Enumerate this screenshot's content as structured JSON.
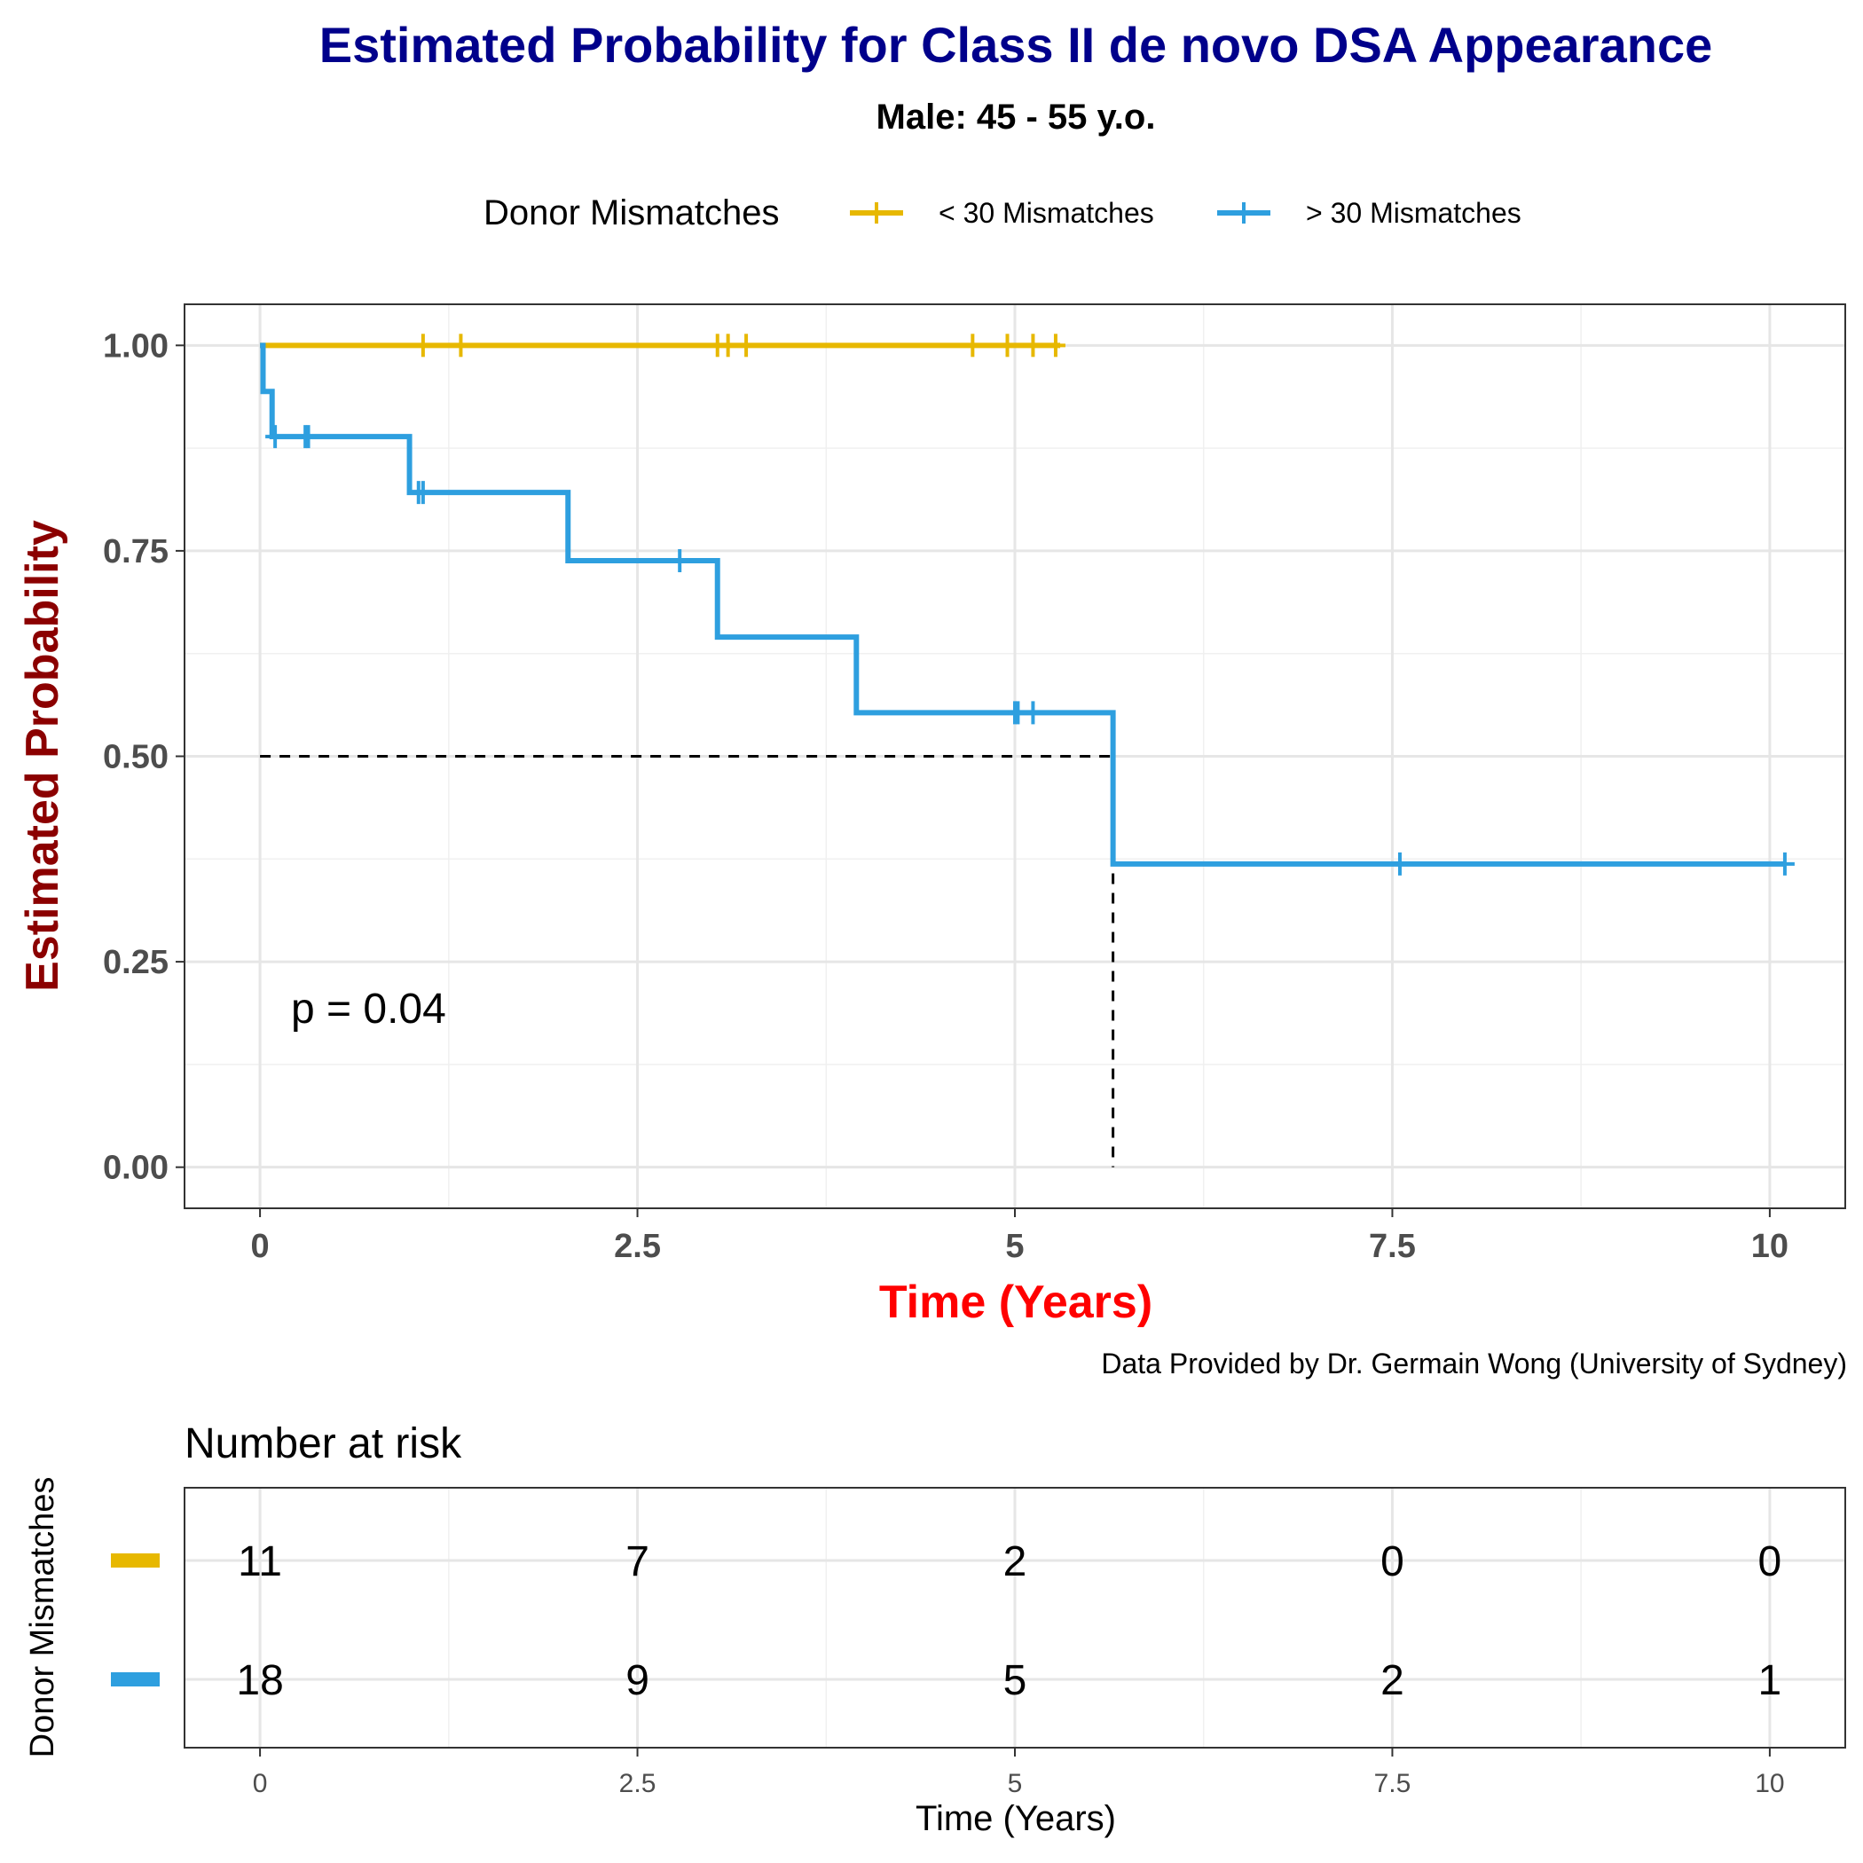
{
  "chart_data": {
    "type": "line",
    "subtype": "kaplan-meier step curve with number-at-risk table",
    "title": "Estimated Probability for Class II de novo DSA Appearance",
    "subtitle": "Male: 45 - 55 y.o.",
    "xlabel": "Time (Years)",
    "ylabel": "Estimated Probability",
    "xlim": [
      -0.5,
      10.5
    ],
    "ylim": [
      -0.05,
      1.05
    ],
    "x_ticks": [
      0,
      2.5,
      5,
      7.5,
      10
    ],
    "x_tick_labels": [
      "0",
      "2.5",
      "5",
      "7.5",
      "10"
    ],
    "y_ticks": [
      0,
      0.25,
      0.5,
      0.75,
      1.0
    ],
    "y_tick_labels": [
      "0.00",
      "0.25",
      "0.50",
      "0.75",
      "1.00"
    ],
    "grid": true,
    "legend": {
      "title": "Donor Mismatches",
      "position": "top",
      "entries": [
        "< 30 Mismatches",
        "> 30 Mismatches"
      ]
    },
    "colors": {
      "< 30 Mismatches": "#E7B800",
      "> 30 Mismatches": "#2E9FDF",
      "title": "#00008B",
      "ylabel": "#8B0000",
      "xlabel": "#FF0000"
    },
    "series": [
      {
        "name": "< 30 Mismatches",
        "color": "#E7B800",
        "steps": [
          [
            0,
            1.0
          ],
          [
            5.3,
            1.0
          ]
        ],
        "censor_times": [
          1.08,
          1.33,
          3.03,
          3.1,
          3.22,
          4.72,
          4.95,
          5.12,
          5.27
        ],
        "censor_values": [
          1,
          1,
          1,
          1,
          1,
          1,
          1,
          1,
          1
        ]
      },
      {
        "name": "> 30 Mismatches",
        "color": "#2E9FDF",
        "steps": [
          [
            0,
            1.0
          ],
          [
            0.02,
            0.944
          ],
          [
            0.08,
            0.889
          ],
          [
            0.99,
            0.821
          ],
          [
            2.04,
            0.738
          ],
          [
            3.03,
            0.645
          ],
          [
            3.95,
            0.553
          ],
          [
            5.65,
            0.369
          ],
          [
            10.1,
            0.369
          ]
        ],
        "censor_times": [
          0.1,
          0.3,
          0.32,
          1.05,
          1.08,
          2.78,
          5.0,
          5.02,
          5.12,
          7.55,
          10.1
        ],
        "censor_values": [
          0.889,
          0.889,
          0.889,
          0.821,
          0.821,
          0.738,
          0.553,
          0.553,
          0.553,
          0.369,
          0.369
        ]
      }
    ],
    "median_line": {
      "y": 0.5,
      "x": 5.65
    },
    "annotation": "p = 0.04",
    "caption": "Data Provided by Dr. Germain Wong (University of Sydney)",
    "risk_table": {
      "title": "Number at risk",
      "ylabel": "Donor Mismatches",
      "xlabel": "Time (Years)",
      "times": [
        0,
        2.5,
        5,
        7.5,
        10
      ],
      "time_labels": [
        "0",
        "2.5",
        "5",
        "7.5",
        "10"
      ],
      "rows": [
        {
          "name": "< 30 Mismatches",
          "color": "#E7B800",
          "counts": [
            11,
            7,
            2,
            0,
            0
          ]
        },
        {
          "name": "> 30 Mismatches",
          "color": "#2E9FDF",
          "counts": [
            18,
            9,
            5,
            2,
            1
          ]
        }
      ]
    }
  }
}
